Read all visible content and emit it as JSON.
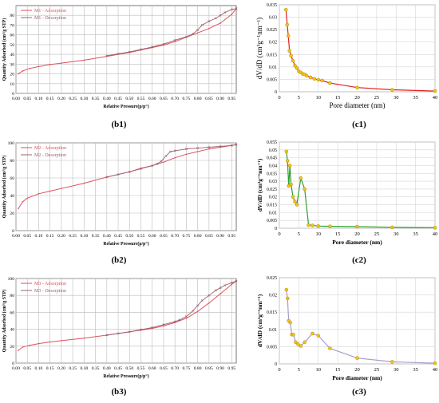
{
  "chart_data": [
    {
      "id": "b1",
      "panel_label": "(b1)",
      "type": "line",
      "xlabel": "Relative Pressure(p/p°)",
      "ylabel": "Quantity Adsorbed (cm³/g STP)",
      "xlim": [
        0,
        0.97
      ],
      "ylim": [
        0,
        90
      ],
      "x_ticks": [
        "0.00",
        "0.05",
        "0.10",
        "0.15",
        "0.20",
        "0.25",
        "0.30",
        "0.35",
        "0.40",
        "0.45",
        "0.50",
        "0.55",
        "0.60",
        "0.65",
        "0.70",
        "0.75",
        "0.80",
        "0.85",
        "0.90",
        "0.95"
      ],
      "y_ticks": [
        "0",
        "10",
        "20",
        "30",
        "40",
        "50",
        "60",
        "70",
        "80"
      ],
      "legend_position": "top-left",
      "colors": {
        "adsorption": "#e0505a",
        "desorption": "#9a6070"
      },
      "series": [
        {
          "name": "M1 - Adsorption",
          "x": [
            0.01,
            0.03,
            0.06,
            0.1,
            0.15,
            0.2,
            0.3,
            0.4,
            0.5,
            0.55,
            0.6,
            0.65,
            0.7,
            0.75,
            0.8,
            0.85,
            0.9,
            0.95,
            0.97
          ],
          "y": [
            20,
            23,
            25.5,
            27.5,
            29.5,
            31,
            34,
            38,
            42,
            44.5,
            47,
            49.5,
            53,
            57.5,
            62,
            66.5,
            72,
            81,
            87
          ]
        },
        {
          "name": "M1 - Desorption",
          "x": [
            0.97,
            0.95,
            0.92,
            0.9,
            0.88,
            0.85,
            0.82,
            0.8,
            0.78,
            0.75,
            0.7,
            0.65,
            0.6,
            0.55,
            0.5,
            0.45,
            0.4
          ],
          "y": [
            87,
            86,
            83,
            80,
            77,
            74,
            70,
            65,
            61,
            58,
            54.5,
            50.5,
            47.5,
            45,
            42.5,
            40.5,
            38.5
          ]
        }
      ]
    },
    {
      "id": "c1",
      "panel_label": "(c1)",
      "type": "line",
      "xlabel": "Pore diameter (nm)",
      "ylabel": "dV/dD (cm³g⁻¹nm⁻¹)",
      "xlim": [
        0,
        40
      ],
      "ylim": [
        0,
        0.035
      ],
      "x_ticks": [
        "0",
        "5",
        "10",
        "15",
        "20",
        "25",
        "30",
        "35",
        "40"
      ],
      "y_ticks": [
        "0",
        "0.005",
        "0.01",
        "0.015",
        "0.02",
        "0.025",
        "0.03",
        "0.035"
      ],
      "colors": {
        "line": "#e02020",
        "marker": "#f5c518"
      },
      "series": [
        {
          "x": [
            1.7,
            2.0,
            2.3,
            2.6,
            3.0,
            3.5,
            4.0,
            4.5,
            5.0,
            5.5,
            6.0,
            6.5,
            7.0,
            8.0,
            9.0,
            10.0,
            11.0,
            13.0,
            20.0,
            29.0,
            40.0
          ],
          "y": [
            0.033,
            0.027,
            0.0225,
            0.0165,
            0.0145,
            0.0125,
            0.0105,
            0.0095,
            0.0082,
            0.0078,
            0.0072,
            0.007,
            0.0065,
            0.0058,
            0.0052,
            0.0048,
            0.0045,
            0.0035,
            0.0017,
            0.0008,
            0.0003
          ]
        }
      ]
    },
    {
      "id": "b2",
      "panel_label": "(b2)",
      "type": "line",
      "xlabel": "Relative Pressure(p/p°)",
      "ylabel": "Quantity Adsorbed (cm³/g STP)",
      "xlim": [
        0,
        0.97
      ],
      "ylim": [
        0,
        100
      ],
      "x_ticks": [
        "0.00",
        "0.05",
        "0.10",
        "0.15",
        "0.20",
        "0.25",
        "0.30",
        "0.35",
        "0.40",
        "0.45",
        "0.50",
        "0.55",
        "0.60",
        "0.65",
        "0.70",
        "0.75",
        "0.80",
        "0.85",
        "0.90",
        "0.95"
      ],
      "y_ticks": [
        "0",
        "20",
        "40",
        "60",
        "80",
        "100"
      ],
      "legend_position": "top-left",
      "colors": {
        "adsorption": "#e0505a",
        "desorption": "#9a6070"
      },
      "series": [
        {
          "name": "M2 - Adsorption",
          "x": [
            0.01,
            0.03,
            0.05,
            0.1,
            0.15,
            0.2,
            0.3,
            0.4,
            0.5,
            0.55,
            0.6,
            0.65,
            0.7,
            0.75,
            0.8,
            0.85,
            0.9,
            0.95,
            0.97
          ],
          "y": [
            25,
            33,
            37,
            42,
            45,
            48,
            54,
            61,
            67,
            71,
            74,
            78,
            83,
            87,
            90,
            93,
            95,
            97,
            98
          ]
        },
        {
          "name": "M2 - Desorption",
          "x": [
            0.97,
            0.95,
            0.9,
            0.85,
            0.8,
            0.75,
            0.7,
            0.68,
            0.66,
            0.64,
            0.62,
            0.6,
            0.55,
            0.5,
            0.45,
            0.4
          ],
          "y": [
            98,
            97,
            96,
            95,
            94,
            93,
            91,
            90,
            85,
            79,
            76,
            74,
            70.5,
            67,
            64,
            61
          ]
        }
      ]
    },
    {
      "id": "c2",
      "panel_label": "(c2)",
      "type": "line",
      "xlabel": "Pore diameter (nm)",
      "ylabel": "dV/dD (cm³g⁻¹nm⁻¹)",
      "xlim": [
        0,
        40
      ],
      "ylim": [
        0,
        0.055
      ],
      "x_ticks": [
        "0",
        "5",
        "10",
        "15",
        "20",
        "25",
        "30",
        "35",
        "40"
      ],
      "y_ticks": [
        "0",
        "0.005",
        "0.01",
        "0.015",
        "0.02",
        "0.025",
        "0.03",
        "0.035",
        "0.04",
        "0.045",
        "0.05",
        "0.055"
      ],
      "colors": {
        "line": "#2ca02c",
        "marker": "#f5c518"
      },
      "series": [
        {
          "x": [
            1.8,
            2.1,
            2.4,
            2.7,
            3.0,
            3.5,
            4.0,
            4.5,
            5.5,
            6.5,
            7.5,
            8.5,
            10.0,
            13.0,
            20.0,
            29.0,
            40.0
          ],
          "y": [
            0.049,
            0.043,
            0.027,
            0.04,
            0.028,
            0.02,
            0.017,
            0.015,
            0.032,
            0.025,
            0.002,
            0.0018,
            0.0014,
            0.0012,
            0.001,
            0.0006,
            0.0003
          ]
        }
      ]
    },
    {
      "id": "b3",
      "panel_label": "(b3)",
      "type": "line",
      "xlabel": "Relative Pressure(p/p°)",
      "ylabel": "Quantity Adsorbed (cm³/g STP)",
      "xlim": [
        0,
        0.97
      ],
      "ylim": [
        0,
        100
      ],
      "x_ticks": [
        "0.00",
        "0.05",
        "0.10",
        "0.15",
        "0.20",
        "0.25",
        "0.30",
        "0.35",
        "0.40",
        "0.45",
        "0.50",
        "0.55",
        "0.60",
        "0.65",
        "0.70",
        "0.75",
        "0.80",
        "0.85",
        "0.90",
        "0.95"
      ],
      "y_ticks": [
        "0",
        "20",
        "40",
        "60",
        "80",
        "100"
      ],
      "legend_position": "top-left",
      "colors": {
        "adsorption": "#e0505a",
        "desorption": "#9a6070"
      },
      "series": [
        {
          "name": "M3 - Adsorption",
          "x": [
            0.01,
            0.03,
            0.06,
            0.1,
            0.15,
            0.2,
            0.3,
            0.4,
            0.5,
            0.55,
            0.6,
            0.65,
            0.7,
            0.75,
            0.8,
            0.85,
            0.9,
            0.95,
            0.97
          ],
          "y": [
            15,
            19,
            21,
            23,
            25,
            26.5,
            29.5,
            33,
            37,
            39,
            41,
            44,
            48,
            53,
            61,
            71,
            82,
            93,
            97
          ]
        },
        {
          "name": "M3 - Desorption",
          "x": [
            0.97,
            0.95,
            0.92,
            0.9,
            0.88,
            0.85,
            0.82,
            0.8,
            0.78,
            0.75,
            0.72,
            0.7,
            0.65,
            0.6,
            0.55,
            0.5,
            0.45,
            0.4
          ],
          "y": [
            97,
            95,
            92,
            89,
            86,
            80,
            74,
            68,
            62,
            55,
            51,
            49,
            45.5,
            42,
            39.5,
            37,
            35,
            33
          ]
        }
      ]
    },
    {
      "id": "c3",
      "panel_label": "(c3)",
      "type": "line",
      "xlabel": "Pore diameter (nm)",
      "ylabel": "dV/dD (cm³g⁻¹nm⁻¹)",
      "xlim": [
        0,
        40
      ],
      "ylim": [
        0,
        0.025
      ],
      "x_ticks": [
        "0",
        "5",
        "10",
        "15",
        "20",
        "25",
        "30",
        "35",
        "40"
      ],
      "y_ticks": [
        "0",
        "0.005",
        "0.01",
        "0.015",
        "0.02",
        "0.025"
      ],
      "colors": {
        "line": "#a89ccc",
        "marker": "#f5c518"
      },
      "series": [
        {
          "x": [
            1.8,
            2.1,
            2.4,
            2.8,
            3.2,
            3.6,
            4.2,
            4.8,
            5.5,
            6.5,
            8.5,
            10.0,
            13.0,
            20.0,
            29.0,
            40.0
          ],
          "y": [
            0.0215,
            0.019,
            0.0125,
            0.012,
            0.0085,
            0.0085,
            0.0063,
            0.0057,
            0.0052,
            0.0063,
            0.0088,
            0.0082,
            0.0045,
            0.0017,
            0.0006,
            0.0002
          ]
        }
      ]
    }
  ]
}
